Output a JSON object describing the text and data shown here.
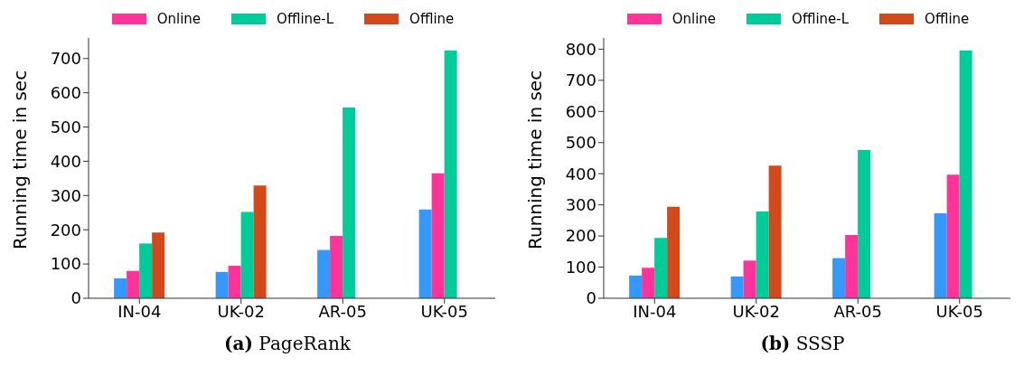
{
  "chart_data": [
    {
      "type": "bar",
      "title": "(a) PageRank",
      "ylabel": "Running time in sec",
      "categories": [
        "IN-04",
        "UK-02",
        "AR-05",
        "UK-05"
      ],
      "series": [
        {
          "color": "#3399ff",
          "values": [
            58,
            77,
            141,
            259
          ]
        },
        {
          "name": "Online",
          "color": "#ff3399",
          "values": [
            80,
            95,
            182,
            365
          ]
        },
        {
          "name": "Offline-L",
          "color": "#00cc99",
          "values": [
            160,
            252,
            557,
            724
          ]
        },
        {
          "name": "Offline",
          "color": "#d2491c",
          "values": [
            192,
            329,
            null,
            null
          ]
        }
      ],
      "ylim": [
        0,
        760
      ],
      "yticks": [
        0,
        100,
        200,
        300,
        400,
        500,
        600,
        700
      ],
      "grid": false,
      "legend": "top"
    },
    {
      "type": "bar",
      "title": "(b) SSSP",
      "ylabel": "Running time in sec",
      "categories": [
        "IN-04",
        "UK-02",
        "AR-05",
        "UK-05"
      ],
      "series": [
        {
          "color": "#3399ff",
          "values": [
            73,
            70,
            129,
            273
          ]
        },
        {
          "name": "Online",
          "color": "#ff3399",
          "values": [
            98,
            121,
            203,
            397
          ]
        },
        {
          "name": "Offline-L",
          "color": "#00cc99",
          "values": [
            194,
            279,
            476,
            796
          ]
        },
        {
          "name": "Offline",
          "color": "#d2491c",
          "values": [
            294,
            426,
            null,
            null
          ]
        }
      ],
      "ylim": [
        0,
        836
      ],
      "yticks": [
        0,
        100,
        200,
        300,
        400,
        500,
        600,
        700,
        800
      ],
      "grid": false,
      "legend": "top"
    }
  ]
}
